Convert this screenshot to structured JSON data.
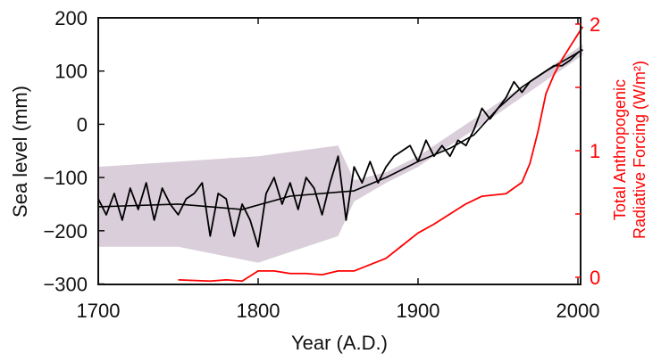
{
  "chart_data": {
    "type": "line",
    "xlabel": "Year (A.D.)",
    "ylabel": "Sea level (mm)",
    "y2label_line1": "Total Anthropogenic",
    "y2label_line2": "Radiative Forcing (W/m²)",
    "xlim": [
      1700,
      2003
    ],
    "ylim": [
      -300,
      200
    ],
    "y2lim": [
      0,
      2
    ],
    "xticks": [
      "1700",
      "1800",
      "1900",
      "2000"
    ],
    "yticks": [
      "200",
      "100",
      "0",
      "−100",
      "−200",
      "−300"
    ],
    "y2ticks": [
      "2",
      "1",
      "0"
    ],
    "grid": false,
    "colors": {
      "sea_level": "#000000",
      "smooth": "#000000",
      "band": "#d9ced9",
      "forcing": "#ff0000",
      "axis2": "#ff0000"
    },
    "series": [
      {
        "role": "sea-level-annual",
        "axis": "left",
        "x": [
          1700,
          1705,
          1710,
          1715,
          1720,
          1725,
          1730,
          1735,
          1740,
          1745,
          1750,
          1755,
          1760,
          1765,
          1770,
          1775,
          1780,
          1785,
          1790,
          1795,
          1800,
          1805,
          1810,
          1815,
          1820,
          1825,
          1830,
          1835,
          1840,
          1845,
          1850,
          1855,
          1860,
          1865,
          1870,
          1875,
          1880,
          1885,
          1890,
          1895,
          1900,
          1905,
          1910,
          1915,
          1920,
          1925,
          1930,
          1935,
          1940,
          1945,
          1950,
          1955,
          1960,
          1965,
          1970,
          1975,
          1980,
          1985,
          1990,
          1995,
          2000,
          2003
        ],
        "y": [
          -140,
          -170,
          -130,
          -180,
          -120,
          -160,
          -110,
          -180,
          -120,
          -150,
          -170,
          -140,
          -130,
          -110,
          -210,
          -130,
          -140,
          -210,
          -150,
          -180,
          -230,
          -130,
          -100,
          -150,
          -110,
          -160,
          -100,
          -120,
          -170,
          -110,
          -60,
          -180,
          -80,
          -110,
          -70,
          -110,
          -80,
          -60,
          -50,
          -40,
          -70,
          -30,
          -60,
          -40,
          -60,
          -30,
          -40,
          -10,
          30,
          10,
          30,
          50,
          80,
          60,
          80,
          90,
          100,
          110,
          110,
          120,
          135,
          140
        ]
      },
      {
        "role": "sea-level-smoothed",
        "axis": "left",
        "x": [
          1700,
          1750,
          1790,
          1820,
          1860,
          1880,
          1900,
          1920,
          1935,
          1950,
          1965,
          1980,
          2003
        ],
        "y": [
          -155,
          -150,
          -160,
          -135,
          -125,
          -100,
          -70,
          -45,
          -20,
          30,
          70,
          100,
          140
        ]
      },
      {
        "role": "sea-level-uncertainty",
        "axis": "left",
        "x": [
          1700,
          1750,
          1800,
          1850,
          1860,
          1880,
          1900,
          1950,
          2003
        ],
        "lower": [
          -230,
          -230,
          -260,
          -210,
          -145,
          -110,
          -80,
          20,
          130
        ],
        "upper": [
          -80,
          -70,
          -60,
          -40,
          -105,
          -90,
          -60,
          40,
          150
        ]
      },
      {
        "role": "radiative-forcing",
        "axis": "right",
        "x": [
          1750,
          1770,
          1780,
          1790,
          1800,
          1810,
          1820,
          1830,
          1840,
          1850,
          1860,
          1870,
          1880,
          1890,
          1900,
          1910,
          1920,
          1930,
          1940,
          1955,
          1965,
          1970,
          1975,
          1980,
          1985,
          1990,
          1995,
          2000,
          2003
        ],
        "y": [
          -0.02,
          -0.03,
          -0.02,
          -0.03,
          0.05,
          0.05,
          0.03,
          0.03,
          0.02,
          0.05,
          0.05,
          0.1,
          0.15,
          0.25,
          0.35,
          0.42,
          0.5,
          0.58,
          0.64,
          0.66,
          0.75,
          0.9,
          1.15,
          1.45,
          1.6,
          1.72,
          1.82,
          1.92,
          1.98
        ]
      }
    ]
  }
}
